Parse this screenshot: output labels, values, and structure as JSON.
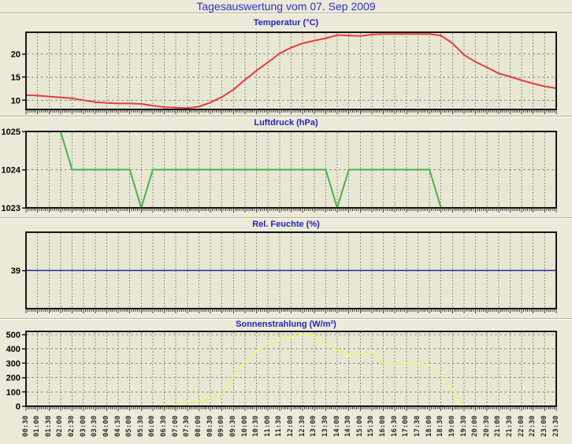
{
  "window": {
    "title": "Tagesauswertung vom 07. Sep 2009"
  },
  "colors": {
    "page_bg": "#ece9d8",
    "plot_bg": "#e8e7d3",
    "grid": "#92928a",
    "axis_border": "#161616",
    "tick_mark": "#3c3c3c",
    "accent_blue": "#2c2cc8",
    "temperature_line": "#e63c3c",
    "pressure_line": "#48b348",
    "humidity_line": "#2828a6",
    "solar_line": "#efef87"
  },
  "x_axis": {
    "labels": [
      "00:30",
      "01:00",
      "01:30",
      "02:00",
      "02:30",
      "03:00",
      "03:30",
      "04:00",
      "04:30",
      "05:00",
      "05:30",
      "06:00",
      "06:30",
      "07:00",
      "07:30",
      "08:00",
      "08:30",
      "09:00",
      "09:30",
      "10:00",
      "10:30",
      "11:00",
      "11:30",
      "12:00",
      "12:30",
      "13:00",
      "13:30",
      "14:00",
      "14:30",
      "15:00",
      "15:30",
      "16:00",
      "16:30",
      "17:00",
      "17:30",
      "18:00",
      "18:30",
      "19:00",
      "19:30",
      "20:00",
      "20:30",
      "21:00",
      "21:30",
      "22:00",
      "22:30",
      "23:00",
      "23:30"
    ]
  },
  "chart_data": [
    {
      "type": "line",
      "series_name": "temperature",
      "title": "Temperatur (°C)",
      "color": "#e63c3c",
      "y_ticks": [
        20,
        15,
        10
      ],
      "y_range": [
        8.0,
        24.7
      ],
      "grid": true,
      "values": [
        11.1,
        11.0,
        10.8,
        10.6,
        10.4,
        10.0,
        9.6,
        9.4,
        9.3,
        9.3,
        9.2,
        8.8,
        8.5,
        8.4,
        8.3,
        8.6,
        9.5,
        10.7,
        12.3,
        14.4,
        16.4,
        18.2,
        20.1,
        21.4,
        22.3,
        22.9,
        23.4,
        24.1,
        24.0,
        23.9,
        24.2,
        24.3,
        24.3,
        24.3,
        24.3,
        24.3,
        24.0,
        22.3,
        19.8,
        18.3,
        17.1,
        15.8,
        15.1,
        14.3,
        13.6,
        13.0,
        12.6
      ]
    },
    {
      "type": "line",
      "series_name": "air-pressure",
      "title": "Luftdruck (hPa)",
      "color": "#48b348",
      "y_ticks": [
        1025,
        1024,
        1023
      ],
      "y_range": [
        1023,
        1025
      ],
      "grid": true,
      "values": [
        1025,
        1025,
        1025,
        1025,
        1024,
        1024,
        1024,
        1024,
        1024,
        1024,
        1023,
        1024,
        1024,
        1024,
        1024,
        1024,
        1024,
        1024,
        1024,
        1024,
        1024,
        1024,
        1024,
        1024,
        1024,
        1024,
        1024,
        1023,
        1024,
        1024,
        1024,
        1024,
        1024,
        1024,
        1024,
        1024,
        1023,
        1023,
        1023,
        1023,
        1023,
        1023,
        1023,
        1023,
        1023,
        1023,
        1023
      ]
    },
    {
      "type": "line",
      "series_name": "humidity",
      "title": "Rel. Feuchte (%)",
      "color": "#2828a6",
      "y_ticks": [
        39
      ],
      "y_range": [
        38,
        40
      ],
      "grid": true,
      "values": [
        39,
        39,
        39,
        39,
        39,
        39,
        39,
        39,
        39,
        39,
        39,
        39,
        39,
        39,
        39,
        39,
        39,
        39,
        39,
        39,
        39,
        39,
        39,
        39,
        39,
        39,
        39,
        39,
        39,
        39,
        39,
        39,
        39,
        39,
        39,
        39,
        39,
        39,
        39,
        39,
        39,
        39,
        39,
        39,
        39,
        39,
        39
      ]
    },
    {
      "type": "line",
      "series_name": "solar-radiation",
      "title": "Sonnenstrahlung (W/m²)",
      "color": "#efef87",
      "y_ticks": [
        500,
        400,
        300,
        200,
        100,
        0
      ],
      "y_range": [
        0,
        522
      ],
      "grid": true,
      "values": [
        0,
        0,
        0,
        0,
        0,
        0,
        0,
        0,
        0,
        0,
        0,
        0,
        5,
        12,
        22,
        35,
        55,
        80,
        215,
        310,
        385,
        440,
        465,
        485,
        500,
        495,
        430,
        390,
        355,
        370,
        380,
        300,
        295,
        300,
        298,
        290,
        215,
        120,
        0,
        0,
        0,
        0,
        0,
        0,
        0,
        0,
        0
      ]
    }
  ]
}
